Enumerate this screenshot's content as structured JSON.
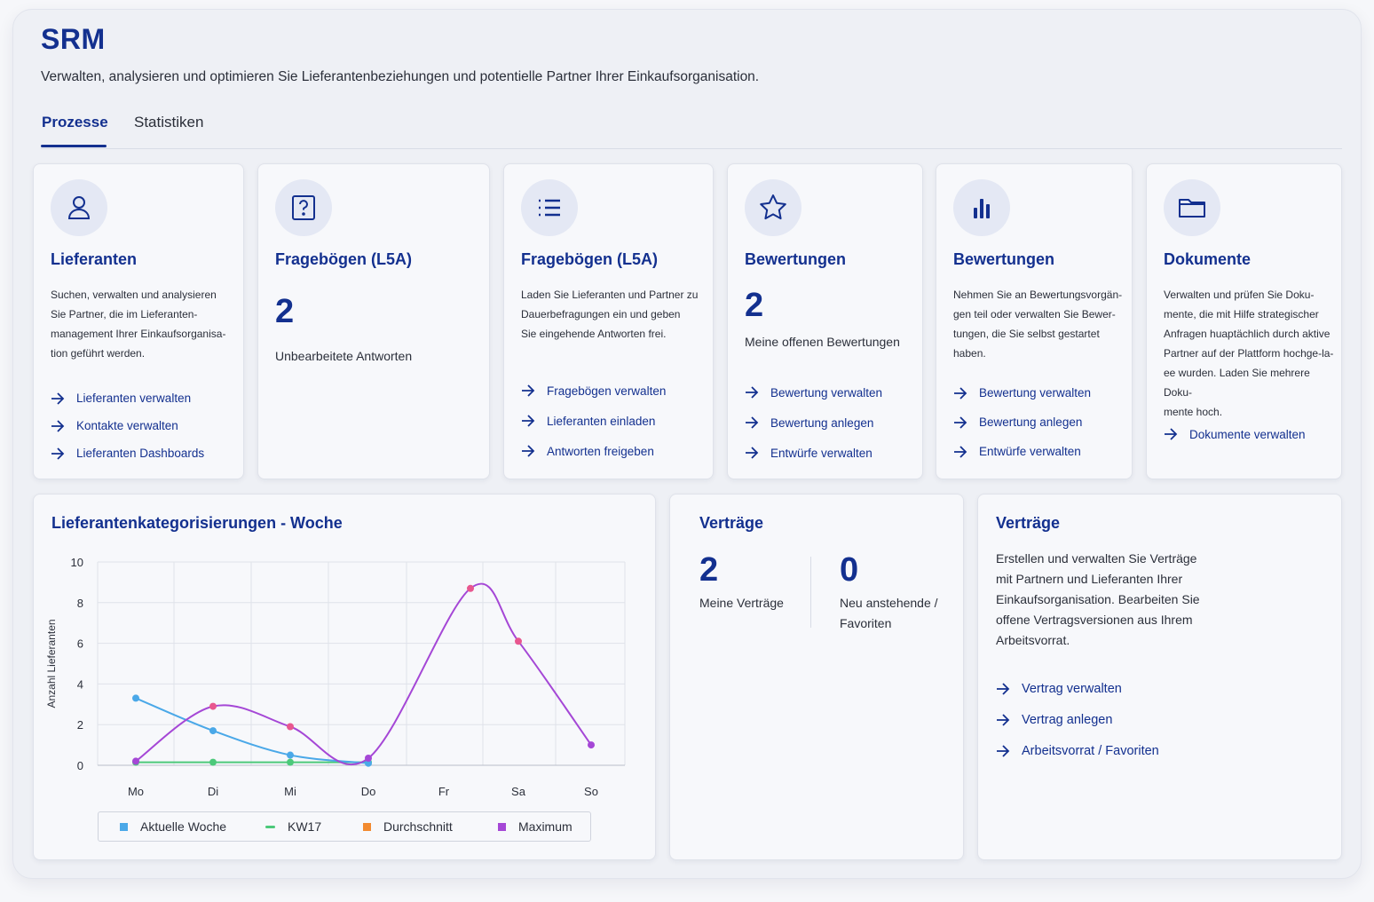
{
  "header": {
    "title": "SRM",
    "subtitle": "Verwalten, analysieren und optimieren Sie Lieferantenbeziehungen und potentielle Partner Ihrer Einkaufsorganisation."
  },
  "tabs": [
    {
      "label": "Prozesse",
      "active": true
    },
    {
      "label": "Statistiken",
      "active": false
    }
  ],
  "cards": [
    {
      "icon": "person-icon",
      "title": "Lieferanten",
      "desc": [
        "Suchen, verwalten und analysieren",
        "Sie Partner, die im Lieferanten-",
        "management Ihrer Einkaufsorganisa-",
        "tion geführt werden."
      ],
      "links": [
        "Lieferanten verwalten",
        "Kontakte verwalten",
        "Lieferanten Dashboards"
      ]
    },
    {
      "icon": "question-icon",
      "title": "Fragebögen (L5A)",
      "count": "2",
      "count_label": "Unbearbeitete Antworten"
    },
    {
      "icon": "list-icon",
      "title": "Fragebögen (L5A)",
      "desc": [
        "Laden Sie Lieferanten und Partner zu",
        "Dauerbefragungen ein und geben",
        "Sie eingehende Antworten frei."
      ],
      "links": [
        "Fragebögen verwalten",
        "Lieferanten einladen",
        "Antworten freigeben"
      ]
    },
    {
      "icon": "star-icon",
      "title": "Bewertungen",
      "count": "2",
      "count_label": "Meine offenen Bewertungen",
      "links": [
        "Bewertung verwalten",
        "Bewertung anlegen",
        "Entwürfe verwalten"
      ]
    },
    {
      "icon": "bar-chart-icon",
      "title": "Bewertungen",
      "desc": [
        "Nehmen Sie an Bewertungsvorgän-",
        "gen teil oder verwalten Sie Bewer-",
        "tungen, die Sie selbst gestartet",
        "haben."
      ],
      "links": [
        "Bewertung verwalten",
        "Bewertung anlegen",
        "Entwürfe verwalten"
      ]
    },
    {
      "icon": "folder-icon",
      "title": "Dokumente",
      "desc": [
        "Verwalten und prüfen Sie Doku-",
        "mente, die mit Hilfe strategischer",
        "Anfragen huaptächlich durch aktive",
        "Partner auf der Plattform hochge-la-",
        "ee wurden. Laden Sie mehrere Doku-",
        "mente hoch."
      ],
      "links": [
        "Dokumente verwalten"
      ]
    }
  ],
  "contracts_stats": {
    "title": "Verträge",
    "my_count": "2",
    "my_label": "Meine Verträge",
    "new_count": "0",
    "new_label_1": "Neu anstehende /",
    "new_label_2": "Favoriten"
  },
  "contracts_info": {
    "title": "Verträge",
    "desc": [
      "Erstellen und verwalten Sie Verträge",
      "mit Partnern und Lieferanten Ihrer",
      "Einkaufsorganisation. Bearbeiten Sie",
      "offene Vertragsversionen aus Ihrem",
      "Arbeitsvorrat."
    ],
    "links": [
      "Vertrag verwalten",
      "Vertrag anlegen",
      "Arbeitsvorrat / Favoriten"
    ]
  },
  "colors": {
    "accent": "#13308f",
    "aktuelle_woche": "#4aa8e8",
    "kw17": "#4cc97a",
    "durchschnitt": "#f28a30",
    "maximum": "#a547d6",
    "maximum_point": "#e8578f"
  },
  "chart_data": {
    "type": "line",
    "title": "Lieferantenkategorisierungen - Woche",
    "ylabel": "Anzahl Lieferanten",
    "xlabel": "",
    "categories": [
      "Mo",
      "Di",
      "Mi",
      "Do",
      "Fr",
      "Sa",
      "So"
    ],
    "ylim": [
      0,
      10
    ],
    "yticks": [
      "0",
      "2",
      "4",
      "6",
      "8",
      "10"
    ],
    "grid": true,
    "legend_position": "bottom",
    "series": [
      {
        "name": "Aktuelle Woche",
        "marker": "square",
        "points": [
          [
            "Mo",
            3.3
          ],
          [
            "Di",
            1.7
          ],
          [
            "Mi",
            0.5
          ],
          [
            "Do",
            0.1
          ]
        ]
      },
      {
        "name": "KW17",
        "marker": "line",
        "points": [
          [
            "Mo",
            0.15
          ],
          [
            "Di",
            0.15
          ],
          [
            "Mi",
            0.15
          ],
          [
            "Do",
            0.15
          ]
        ]
      },
      {
        "name": "Durchschnitt",
        "marker": "square",
        "points": []
      },
      {
        "name": "Maximum",
        "marker": "square",
        "points": [
          [
            "Mo",
            0.2
          ],
          [
            "Di",
            2.9
          ],
          [
            "Mi",
            1.9
          ],
          [
            "Do",
            0.35
          ],
          [
            "Fr-Sa",
            8.7
          ],
          [
            "Sa",
            6.1
          ],
          [
            "So",
            1.0
          ]
        ]
      }
    ]
  }
}
